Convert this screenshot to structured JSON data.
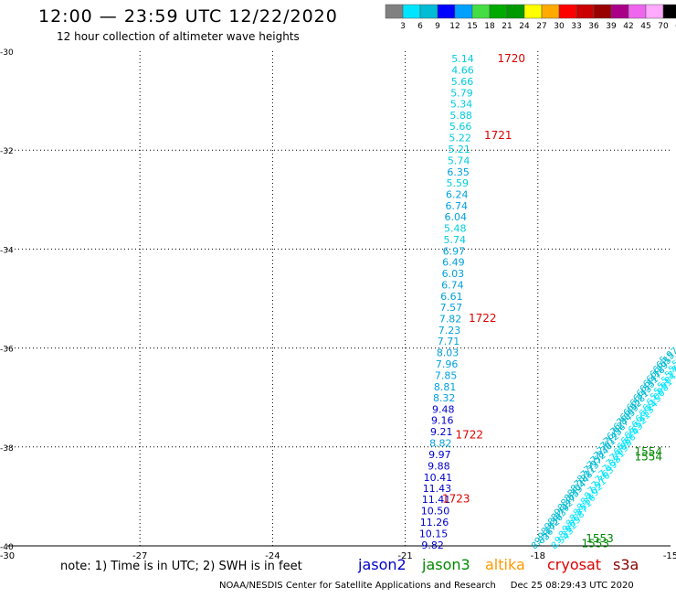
{
  "header": {
    "title": "12:00 — 23:59 UTC 12/22/2020",
    "subtitle": "12 hour collection of altimeter wave heights"
  },
  "footer": {
    "credit": "NOAA/NESDIS Center for Satellite Applications and Research",
    "timestamp": "Dec 25 08:29:43 UTC 2020"
  },
  "note": "note: 1) Time is in UTC; 2) SWH is in feet",
  "satellites": [
    {
      "name": "jason2",
      "color": "#0000cc"
    },
    {
      "name": "jason3",
      "color": "#008800"
    },
    {
      "name": "altika",
      "color": "#ff9900"
    },
    {
      "name": "cryosat",
      "color": "#dd0000"
    },
    {
      "name": "s3a",
      "color": "#880000"
    }
  ],
  "colorbar": {
    "unit": "(ft)",
    "labels": [
      "3",
      "6",
      "9",
      "12",
      "15",
      "18",
      "21",
      "24",
      "27",
      "30",
      "33",
      "36",
      "39",
      "42",
      "45",
      "70"
    ],
    "colors": [
      "#808080",
      "#00e5ff",
      "#00bcd4",
      "#0000ff",
      "#00a0ff",
      "#44dd44",
      "#00aa00",
      "#009900",
      "#ffff00",
      "#ffaa00",
      "#ff0000",
      "#cc0000",
      "#990000",
      "#aa0088",
      "#ee66ee",
      "#ffaaff",
      "#000000"
    ]
  },
  "chart_data": {
    "type": "scatter",
    "xlim": [
      -30,
      -15
    ],
    "ylim": [
      -40,
      -30
    ],
    "x_ticks": [
      "-30",
      "-27",
      "-24",
      "-21",
      "-18",
      "-15"
    ],
    "y_ticks": [
      "-30",
      "-32",
      "-34",
      "-36",
      "-38",
      "-40"
    ],
    "grid": true,
    "track": [
      {
        "lon": -19.7,
        "lat": -30.15,
        "value": "5.14"
      },
      {
        "lon": -19.7,
        "lat": -30.38,
        "value": "4.66"
      },
      {
        "lon": -19.71,
        "lat": -30.61,
        "value": "5.66"
      },
      {
        "lon": -19.72,
        "lat": -30.84,
        "value": "5.79"
      },
      {
        "lon": -19.73,
        "lat": -31.06,
        "value": "5.34"
      },
      {
        "lon": -19.74,
        "lat": -31.29,
        "value": "5.88"
      },
      {
        "lon": -19.75,
        "lat": -31.52,
        "value": "5.66"
      },
      {
        "lon": -19.76,
        "lat": -31.75,
        "value": "5.22"
      },
      {
        "lon": -19.78,
        "lat": -31.98,
        "value": "5.21"
      },
      {
        "lon": -19.79,
        "lat": -32.21,
        "value": "5.74"
      },
      {
        "lon": -19.8,
        "lat": -32.44,
        "value": "6.35"
      },
      {
        "lon": -19.82,
        "lat": -32.66,
        "value": "5.59"
      },
      {
        "lon": -19.83,
        "lat": -32.89,
        "value": "6.24"
      },
      {
        "lon": -19.84,
        "lat": -33.12,
        "value": "6.74"
      },
      {
        "lon": -19.86,
        "lat": -33.35,
        "value": "6.04"
      },
      {
        "lon": -19.87,
        "lat": -33.58,
        "value": "5.48"
      },
      {
        "lon": -19.88,
        "lat": -33.81,
        "value": "5.74"
      },
      {
        "lon": -19.9,
        "lat": -34.04,
        "value": "6.97"
      },
      {
        "lon": -19.91,
        "lat": -34.26,
        "value": "6.49"
      },
      {
        "lon": -19.92,
        "lat": -34.49,
        "value": "6.03"
      },
      {
        "lon": -19.93,
        "lat": -34.72,
        "value": "6.74"
      },
      {
        "lon": -19.95,
        "lat": -34.95,
        "value": "6.61"
      },
      {
        "lon": -19.96,
        "lat": -35.18,
        "value": "7.57"
      },
      {
        "lon": -19.98,
        "lat": -35.41,
        "value": "7.82"
      },
      {
        "lon": -20.0,
        "lat": -35.64,
        "value": "7.23"
      },
      {
        "lon": -20.02,
        "lat": -35.86,
        "value": "7.71"
      },
      {
        "lon": -20.04,
        "lat": -36.09,
        "value": "8.03"
      },
      {
        "lon": -20.06,
        "lat": -36.32,
        "value": "7.96"
      },
      {
        "lon": -20.08,
        "lat": -36.55,
        "value": "7.85"
      },
      {
        "lon": -20.1,
        "lat": -36.78,
        "value": "8.81"
      },
      {
        "lon": -20.12,
        "lat": -37.01,
        "value": "8.32"
      },
      {
        "lon": -20.14,
        "lat": -37.24,
        "value": "9.48"
      },
      {
        "lon": -20.16,
        "lat": -37.46,
        "value": "9.16"
      },
      {
        "lon": -20.18,
        "lat": -37.69,
        "value": "9.21"
      },
      {
        "lon": -20.2,
        "lat": -37.92,
        "value": "8.82"
      },
      {
        "lon": -20.22,
        "lat": -38.15,
        "value": "9.97"
      },
      {
        "lon": -20.24,
        "lat": -38.38,
        "value": "9.88"
      },
      {
        "lon": -20.26,
        "lat": -38.61,
        "value": "10.41"
      },
      {
        "lon": -20.28,
        "lat": -38.84,
        "value": "11.43"
      },
      {
        "lon": -20.3,
        "lat": -39.06,
        "value": "11.41"
      },
      {
        "lon": -20.32,
        "lat": -39.29,
        "value": "10.50"
      },
      {
        "lon": -20.34,
        "lat": -39.52,
        "value": "11.26"
      },
      {
        "lon": -20.36,
        "lat": -39.75,
        "value": "10.15"
      },
      {
        "lon": -20.38,
        "lat": -39.98,
        "value": "9.82"
      }
    ],
    "time_labels": [
      {
        "lon": -18.6,
        "lat": -30.15,
        "text": "1720",
        "color": "#dd0000"
      },
      {
        "lon": -18.9,
        "lat": -31.7,
        "text": "1721",
        "color": "#dd0000"
      },
      {
        "lon": -19.25,
        "lat": -35.4,
        "text": "1722",
        "color": "#dd0000"
      },
      {
        "lon": -19.55,
        "lat": -37.75,
        "text": "1722",
        "color": "#dd0000"
      },
      {
        "lon": -19.85,
        "lat": -39.05,
        "text": "1723",
        "color": "#dd0000"
      },
      {
        "lon": -15.5,
        "lat": -38.1,
        "text": "1554",
        "color": "#008800"
      },
      {
        "lon": -15.5,
        "lat": -38.2,
        "text": "1554",
        "color": "#008800"
      },
      {
        "lon": -16.6,
        "lat": -39.85,
        "text": "1553",
        "color": "#008800"
      },
      {
        "lon": -16.7,
        "lat": -39.95,
        "text": "1553",
        "color": "#008800"
      }
    ],
    "lower_right_tracks": [
      {
        "values": [
          "8.83",
          "9.56",
          "9.17",
          "8.82",
          "9.36",
          "8.93",
          "8.79",
          "9.22",
          "8.47",
          "8.65",
          "8.39",
          "8.04",
          "8.24",
          "7.88",
          "8.11",
          "7.73",
          "7.97",
          "7.52",
          "7.84",
          "7.38",
          "7.61",
          "7.12",
          "7.45",
          "6.96",
          "7.27",
          "6.84",
          "7.05",
          "6.69",
          "6.92",
          "6.58",
          "6.71",
          "6.43",
          "6.55",
          "6.31",
          "6.47",
          "6.18",
          "6.29",
          "6.05",
          "6.15",
          "5.97"
        ],
        "color": "#00bcd4"
      },
      {
        "values": [
          "8.54",
          "9.33",
          "8.92",
          "9.05",
          "8.68",
          "8.77",
          "8.51",
          "8.36",
          "8.19",
          "8.02",
          "7.91",
          "7.76",
          "7.63",
          "7.49",
          "7.38",
          "7.21",
          "7.09",
          "6.98",
          "6.86",
          "6.74",
          "6.63",
          "6.52",
          "6.41",
          "6.33",
          "6.24",
          "6.15",
          "6.06",
          "5.98",
          "5.91",
          "5.84",
          "5.77",
          "5.71",
          "5.66",
          "5.61",
          "5.55",
          "5.49"
        ],
        "color": "#00e5ff"
      }
    ]
  }
}
